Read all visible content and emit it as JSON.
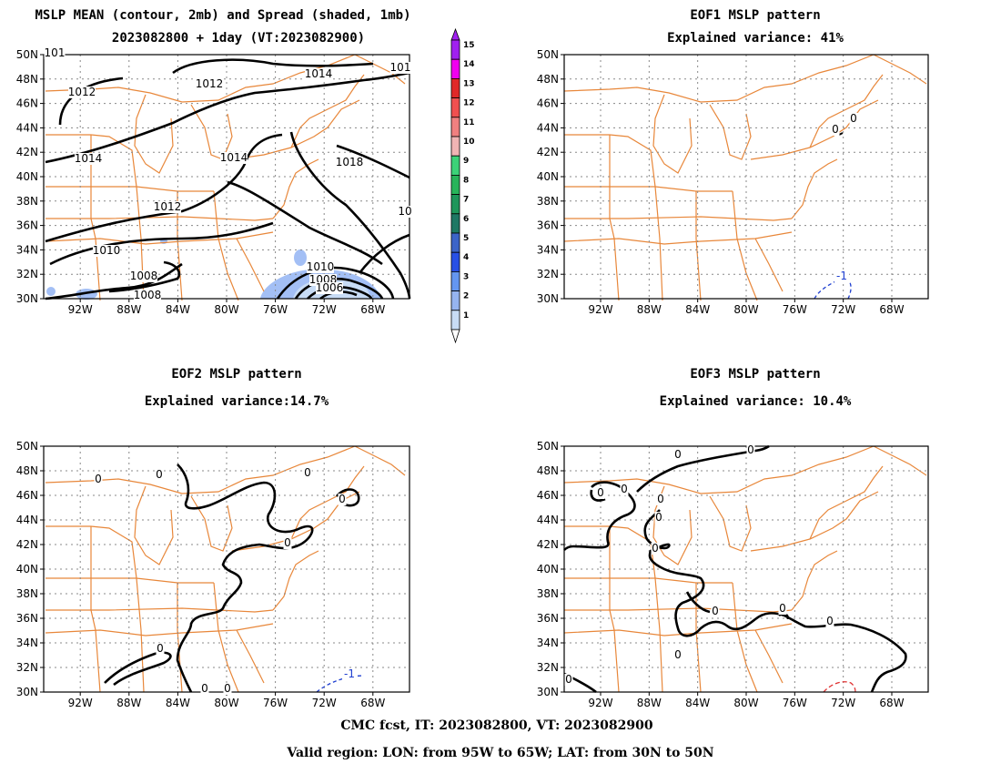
{
  "panels": {
    "p1": {
      "title1": "MSLP MEAN (contour, 2mb) and Spread (shaded, 1mb)",
      "title2": "2023082800 + 1day (VT:2023082900)"
    },
    "p2": {
      "title1": "EOF1 MSLP pattern",
      "title2": "Explained variance: 41%"
    },
    "p3": {
      "title1": "EOF2 MSLP pattern",
      "title2": "Explained variance:14.7%"
    },
    "p4": {
      "title1": "EOF3 MSLP pattern",
      "title2": "Explained variance: 10.4%"
    }
  },
  "axes": {
    "lat_labels": [
      "50N",
      "48N",
      "46N",
      "44N",
      "42N",
      "40N",
      "38N",
      "36N",
      "34N",
      "32N",
      "30N"
    ],
    "lon_labels": [
      "92W",
      "88W",
      "84W",
      "80W",
      "76W",
      "72W",
      "68W"
    ]
  },
  "colorbar": {
    "labels": [
      "15",
      "14",
      "13",
      "12",
      "11",
      "10",
      "9",
      "8",
      "7",
      "6",
      "5",
      "4",
      "3",
      "2",
      "1"
    ],
    "colors": [
      "#a020f0",
      "#f000f0",
      "#e02828",
      "#f05050",
      "#f08080",
      "#f0b4b4",
      "#3cd278",
      "#28b45a",
      "#1e965a",
      "#1e7864",
      "#3c64c8",
      "#2850e6",
      "#6496f0",
      "#96b4f0",
      "#c8dcf5"
    ]
  },
  "contour_labels": {
    "p1": [
      "1012",
      "1014",
      "1012",
      "1014",
      "1014",
      "1018",
      "1012",
      "1010",
      "1008",
      "1008",
      "1010",
      "1008",
      "1006",
      "101",
      "101",
      "10"
    ],
    "p2": [
      "0",
      "0",
      "-1"
    ],
    "p3": [
      "0",
      "0",
      "0",
      "0",
      "0",
      "0",
      "0",
      "0",
      "-1"
    ],
    "p4": [
      "0",
      "0",
      "0",
      "0",
      "0",
      "0",
      "0",
      "0",
      "0",
      "0",
      "0",
      "0"
    ]
  },
  "footer": {
    "line1": "CMC fcst, IT: 2023082800, VT: 2023082900",
    "line2": "Valid region: LON: from 95W to 65W; LAT: from 30N to 50N"
  },
  "colors": {
    "state_lines": "#e8873a",
    "grid": "#888888",
    "spread_shade": "#a3bff5"
  }
}
